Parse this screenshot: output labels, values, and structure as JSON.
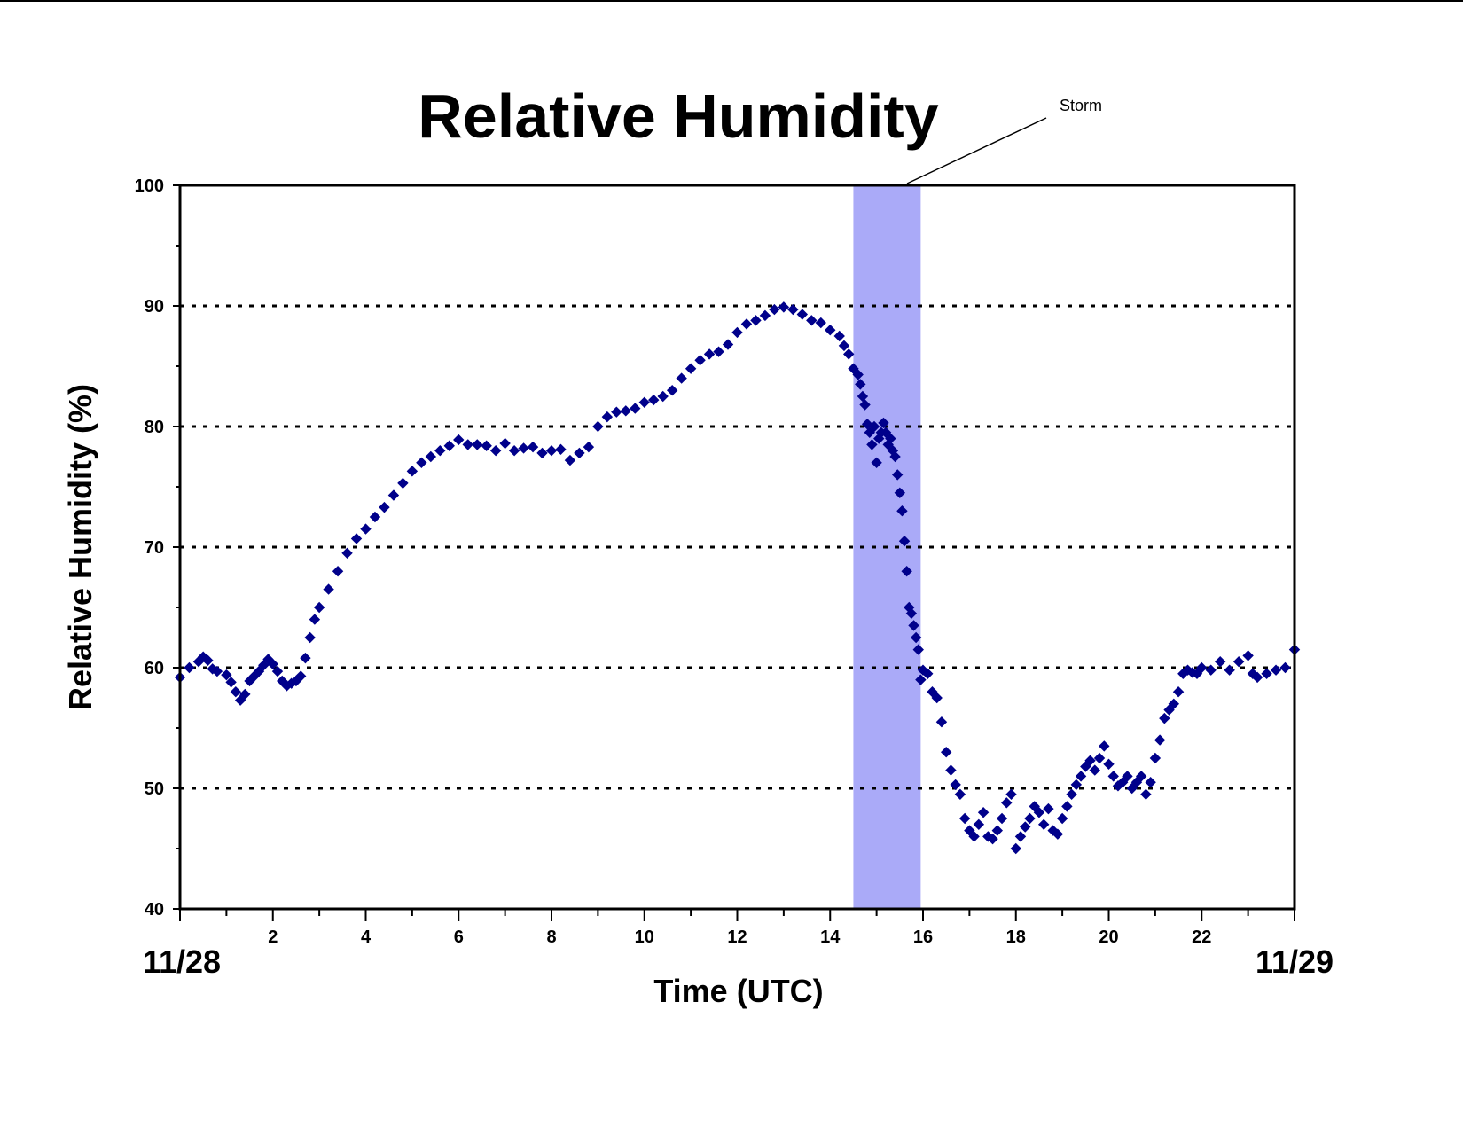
{
  "chart_data": {
    "type": "scatter",
    "title": "Relative Humidity",
    "xlabel": "Time (UTC)",
    "ylabel": "Relative Humidity (%)",
    "xlim": [
      0,
      24
    ],
    "ylim": [
      40,
      100
    ],
    "x_tick_labels": [
      "2",
      "4",
      "6",
      "8",
      "10",
      "12",
      "14",
      "16",
      "18",
      "20",
      "22"
    ],
    "x_tick_values": [
      2,
      4,
      6,
      8,
      10,
      12,
      14,
      16,
      18,
      20,
      22
    ],
    "y_tick_labels": [
      "40",
      "50",
      "60",
      "70",
      "80",
      "90",
      "100"
    ],
    "y_tick_values": [
      40,
      50,
      60,
      70,
      80,
      90,
      100
    ],
    "date_labels": {
      "start": "11/28",
      "end": "11/29"
    },
    "gridlines": "horizontal dotted at 50, 60, 70, 80, 90",
    "legend": "none",
    "marker": "diamond",
    "series_color": "#00008B",
    "shaded_region": {
      "x_start": 14.5,
      "x_end": 15.95,
      "label": "Storm",
      "color": "#AAAAF8"
    },
    "series": [
      {
        "x": [
          0.0,
          0.2,
          0.4,
          0.5,
          0.6,
          0.7,
          0.8,
          1.0,
          1.1,
          1.2,
          1.3,
          1.4,
          1.5,
          1.6,
          1.7,
          1.8,
          1.9,
          2.0,
          2.1,
          2.2,
          2.3,
          2.4,
          2.5,
          2.6,
          2.7,
          2.8,
          2.9,
          3.0,
          3.2,
          3.4,
          3.6,
          3.8,
          4.0,
          4.2,
          4.4,
          4.6,
          4.8,
          5.0,
          5.2,
          5.4,
          5.6,
          5.8,
          6.0,
          6.2,
          6.4,
          6.6,
          6.8,
          7.0,
          7.2,
          7.4,
          7.6,
          7.8,
          8.0,
          8.2,
          8.4,
          8.6,
          8.8,
          9.0,
          9.2,
          9.4,
          9.6,
          9.8,
          10.0,
          10.2,
          10.4,
          10.6,
          10.8,
          11.0,
          11.2,
          11.4,
          11.6,
          11.8,
          12.0,
          12.2,
          12.4,
          12.6,
          12.8,
          13.0,
          13.2,
          13.4,
          13.6,
          13.8,
          14.0,
          14.2,
          14.3,
          14.4,
          14.5,
          14.6,
          14.65,
          14.7,
          14.75,
          14.8,
          14.85,
          14.9,
          14.95,
          15.0,
          15.05,
          15.1,
          15.15,
          15.2,
          15.25,
          15.3,
          15.35,
          15.4,
          15.45,
          15.5,
          15.55,
          15.6,
          15.65,
          15.7,
          15.75,
          15.8,
          15.85,
          15.9,
          15.95,
          16.0,
          16.1,
          16.2,
          16.3,
          16.4,
          16.5,
          16.6,
          16.7,
          16.8,
          16.9,
          17.0,
          17.1,
          17.2,
          17.3,
          17.4,
          17.5,
          17.6,
          17.7,
          17.8,
          17.9,
          18.0,
          18.1,
          18.2,
          18.3,
          18.4,
          18.5,
          18.6,
          18.7,
          18.8,
          18.9,
          19.0,
          19.1,
          19.2,
          19.3,
          19.4,
          19.5,
          19.6,
          19.7,
          19.8,
          19.9,
          20.0,
          20.1,
          20.2,
          20.3,
          20.4,
          20.5,
          20.6,
          20.7,
          20.8,
          20.9,
          21.0,
          21.1,
          21.2,
          21.3,
          21.4,
          21.5,
          21.6,
          21.7,
          21.8,
          21.9,
          22.0,
          22.2,
          22.4,
          22.6,
          22.8,
          23.0,
          23.1,
          23.2,
          23.4,
          23.6,
          23.8,
          24.0
        ],
        "y": [
          59.2,
          60.0,
          60.5,
          60.9,
          60.6,
          59.9,
          59.7,
          59.4,
          58.8,
          58.0,
          57.3,
          57.8,
          58.9,
          59.3,
          59.7,
          60.2,
          60.7,
          60.3,
          59.7,
          58.9,
          58.5,
          58.7,
          58.9,
          59.3,
          60.8,
          62.5,
          64.0,
          65.0,
          66.5,
          68.0,
          69.5,
          70.7,
          71.5,
          72.5,
          73.3,
          74.3,
          75.3,
          76.3,
          77.0,
          77.5,
          78.0,
          78.4,
          78.9,
          78.5,
          78.5,
          78.4,
          78.0,
          78.6,
          78.0,
          78.2,
          78.3,
          77.8,
          78.0,
          78.1,
          77.2,
          77.8,
          78.3,
          80.0,
          80.8,
          81.2,
          81.3,
          81.5,
          82.0,
          82.2,
          82.5,
          83.0,
          84.0,
          84.8,
          85.5,
          86.0,
          86.2,
          86.8,
          87.8,
          88.5,
          88.8,
          89.2,
          89.7,
          89.9,
          89.7,
          89.3,
          88.8,
          88.6,
          88.0,
          87.5,
          86.7,
          86.0,
          84.8,
          84.3,
          83.5,
          82.5,
          81.8,
          80.2,
          79.5,
          78.5,
          80.0,
          77.0,
          79.0,
          79.5,
          80.3,
          79.5,
          78.5,
          79.0,
          78.0,
          77.5,
          76.0,
          74.5,
          73.0,
          70.5,
          68.0,
          65.0,
          64.5,
          63.5,
          62.5,
          61.5,
          59.0,
          59.8,
          59.5,
          58.0,
          57.5,
          55.5,
          53.0,
          51.5,
          50.3,
          49.5,
          47.5,
          46.5,
          46.0,
          47.0,
          48.0,
          46.0,
          45.8,
          46.5,
          47.5,
          48.8,
          49.5,
          45.0,
          46.0,
          46.8,
          47.5,
          48.5,
          48.0,
          47.0,
          48.3,
          46.5,
          46.2,
          47.5,
          48.5,
          49.5,
          50.3,
          51.0,
          51.8,
          52.3,
          51.5,
          52.5,
          53.5,
          52.0,
          51.0,
          50.2,
          50.5,
          51.0,
          50.0,
          50.5,
          51.0,
          49.5,
          50.5,
          52.5,
          54.0,
          55.8,
          56.5,
          57.0,
          58.0,
          59.5,
          59.8,
          59.6,
          59.5,
          60.0,
          59.8,
          60.5,
          59.8,
          60.5,
          61.0,
          59.5,
          59.2,
          59.5,
          59.8,
          60.0,
          61.5
        ]
      }
    ]
  }
}
